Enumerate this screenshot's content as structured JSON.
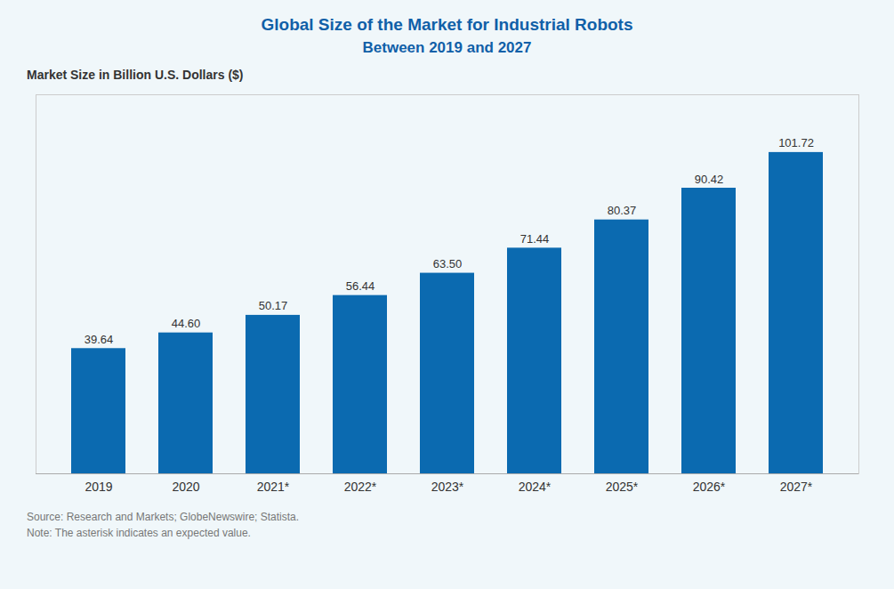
{
  "chart_data": {
    "type": "bar",
    "title": "Global Size of the Market for Industrial Robots",
    "subtitle": "Between 2019 and 2027",
    "ylabel": "Market Size in Billion U.S. Dollars ($)",
    "categories": [
      "2019",
      "2020",
      "2021*",
      "2022*",
      "2023*",
      "2024*",
      "2025*",
      "2026*",
      "2027*"
    ],
    "values": [
      39.64,
      44.6,
      50.17,
      56.44,
      63.5,
      71.44,
      80.37,
      90.42,
      101.72
    ],
    "value_labels": [
      "39.64",
      "44.60",
      "50.17",
      "56.44",
      "63.50",
      "71.44",
      "80.37",
      "90.42",
      "101.72"
    ],
    "color": "#0B6AB0",
    "ylim": [
      0,
      120
    ],
    "grid": false,
    "data_labels": true,
    "tick_labels": "x",
    "annotations": [
      "Source: Research and Markets; GlobeNewswire; Statista.",
      "Note: The asterisk indicates an expected value."
    ]
  }
}
